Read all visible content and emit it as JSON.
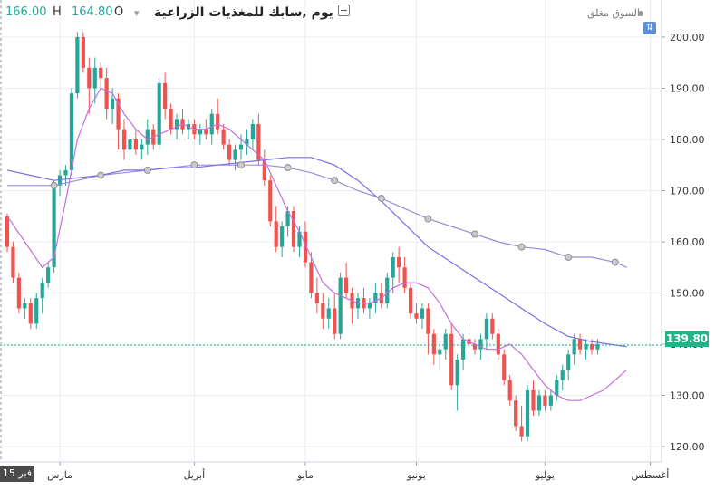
{
  "header": {
    "title": "يوم ,سابك للمغذيات الزراعية",
    "open_label": "O",
    "open_value": "164.80",
    "high_label": "H",
    "high_value": "166.00",
    "market_status": "السوق مغلق",
    "sort_glyph": "⇅",
    "minimize_icon": "minus-square-icon",
    "caret_icon": "caret-down-icon"
  },
  "last_price_label": "139.80",
  "crosshair_date_label": "15 فبر",
  "colors": {
    "up": "#26a69a",
    "down": "#ef5350",
    "ma_short": "#c86ce0",
    "ma_mid": "#7b6ee8",
    "ma_long": "#9a8cd9",
    "last_price_line": "#22b388",
    "grid": "#e9eef3"
  },
  "chart_data": {
    "type": "candlestick",
    "y_ticks": [
      "200.00",
      "190.00",
      "180.00",
      "170.00",
      "160.00",
      "150.00",
      "140.00",
      "130.00",
      "120.00"
    ],
    "ylim": [
      117,
      203
    ],
    "x_tick_labels": [
      "مارس",
      "أبريل",
      "مايو",
      "يونيو",
      "يوليو",
      "أغسطس"
    ],
    "x_tick_index": [
      9,
      32,
      51,
      70,
      92,
      110
    ],
    "last_price": 139.8,
    "candles": [
      [
        165,
        165.5,
        158,
        159
      ],
      [
        159,
        160,
        152,
        153
      ],
      [
        153,
        154,
        146,
        147
      ],
      [
        147,
        149,
        145,
        148
      ],
      [
        148,
        149,
        143,
        144
      ],
      [
        144,
        150,
        143,
        149
      ],
      [
        149,
        153,
        146,
        152
      ],
      [
        152,
        156,
        151,
        155
      ],
      [
        155,
        172,
        154,
        171
      ],
      [
        171,
        174,
        169,
        173
      ],
      [
        173,
        175,
        171,
        174
      ],
      [
        174,
        190,
        173,
        189
      ],
      [
        189,
        201,
        188,
        200
      ],
      [
        200,
        201,
        193,
        194
      ],
      [
        194,
        196,
        185,
        190
      ],
      [
        190,
        196,
        187,
        194
      ],
      [
        194,
        195,
        190,
        192
      ],
      [
        192,
        194,
        184,
        186
      ],
      [
        186,
        190,
        183,
        188
      ],
      [
        188,
        189,
        178,
        182
      ],
      [
        182,
        184,
        176,
        178
      ],
      [
        178,
        181,
        176,
        180
      ],
      [
        180,
        182,
        177,
        178
      ],
      [
        178,
        180,
        176,
        179
      ],
      [
        179,
        184,
        177,
        182
      ],
      [
        182,
        183,
        178,
        179
      ],
      [
        179,
        192,
        178,
        191
      ],
      [
        191,
        193,
        184,
        186
      ],
      [
        186,
        187,
        181,
        182
      ],
      [
        182,
        185,
        180,
        184
      ],
      [
        184,
        186,
        181,
        182
      ],
      [
        182,
        184,
        180,
        183
      ],
      [
        183,
        184,
        180,
        181
      ],
      [
        181,
        183,
        179,
        182
      ],
      [
        182,
        184,
        180,
        181
      ],
      [
        181,
        186,
        179,
        185
      ],
      [
        185,
        188,
        181,
        182
      ],
      [
        182,
        183,
        178,
        179
      ],
      [
        179,
        180,
        175,
        176
      ],
      [
        176,
        179,
        174,
        178
      ],
      [
        178,
        181,
        176,
        179
      ],
      [
        179,
        182,
        177,
        180
      ],
      [
        180,
        184,
        178,
        183
      ],
      [
        183,
        185,
        175,
        176
      ],
      [
        176,
        178,
        171,
        172
      ],
      [
        172,
        173,
        163,
        164
      ],
      [
        164,
        167,
        158,
        159
      ],
      [
        159,
        164,
        157,
        163
      ],
      [
        163,
        167,
        161,
        166
      ],
      [
        166,
        167,
        158,
        159
      ],
      [
        159,
        163,
        157,
        162
      ],
      [
        162,
        164,
        155,
        156
      ],
      [
        156,
        158,
        149,
        150
      ],
      [
        150,
        153,
        146,
        148
      ],
      [
        148,
        150,
        143,
        145
      ],
      [
        145,
        149,
        143,
        147
      ],
      [
        147,
        150,
        141,
        142
      ],
      [
        142,
        154,
        141,
        153
      ],
      [
        153,
        156,
        149,
        150
      ],
      [
        150,
        151,
        144,
        147
      ],
      [
        147,
        150,
        145,
        149
      ],
      [
        149,
        151,
        146,
        147
      ],
      [
        147,
        149,
        145,
        148
      ],
      [
        148,
        152,
        146,
        150
      ],
      [
        150,
        152,
        147,
        148
      ],
      [
        148,
        154,
        147,
        153
      ],
      [
        153,
        158,
        150,
        157
      ],
      [
        157,
        159,
        152,
        155
      ],
      [
        155,
        157,
        150,
        151
      ],
      [
        151,
        152,
        145,
        146
      ],
      [
        146,
        148,
        144,
        145
      ],
      [
        145,
        148,
        143,
        147
      ],
      [
        147,
        148,
        138,
        142
      ],
      [
        142,
        143,
        136,
        138
      ],
      [
        138,
        140,
        135,
        139
      ],
      [
        139,
        143,
        137,
        142
      ],
      [
        142,
        144,
        131,
        132
      ],
      [
        132,
        138,
        127,
        137
      ],
      [
        137,
        142,
        135,
        141
      ],
      [
        141,
        144,
        139,
        140
      ],
      [
        140,
        141,
        138,
        139
      ],
      [
        139,
        142,
        137,
        141
      ],
      [
        141,
        146,
        139,
        145
      ],
      [
        145,
        146,
        141,
        142
      ],
      [
        142,
        143,
        137,
        138
      ],
      [
        138,
        139,
        132,
        133
      ],
      [
        133,
        134,
        128,
        129
      ],
      [
        129,
        130,
        123,
        124
      ],
      [
        124,
        128,
        121,
        122
      ],
      [
        122,
        132,
        121,
        131
      ],
      [
        131,
        133,
        126,
        127
      ],
      [
        127,
        131,
        126,
        130
      ],
      [
        130,
        131,
        127,
        128
      ],
      [
        128,
        131,
        127,
        130
      ],
      [
        130,
        134,
        129,
        133
      ],
      [
        133,
        136,
        131,
        135
      ],
      [
        135,
        139,
        133,
        138
      ],
      [
        138,
        142,
        136,
        141
      ],
      [
        141,
        142,
        138,
        139
      ],
      [
        139,
        141,
        137,
        140
      ],
      [
        140,
        141,
        138,
        139
      ],
      [
        139,
        141,
        138,
        140
      ]
    ],
    "ma_short": [
      [
        0,
        165
      ],
      [
        3,
        160
      ],
      [
        6,
        155
      ],
      [
        8,
        157
      ],
      [
        10,
        168
      ],
      [
        12,
        180
      ],
      [
        14,
        186
      ],
      [
        16,
        190
      ],
      [
        18,
        189
      ],
      [
        20,
        185
      ],
      [
        22,
        182
      ],
      [
        24,
        180
      ],
      [
        26,
        181
      ],
      [
        28,
        182
      ],
      [
        30,
        183
      ],
      [
        32,
        182
      ],
      [
        34,
        182
      ],
      [
        36,
        183
      ],
      [
        38,
        182
      ],
      [
        40,
        180
      ],
      [
        42,
        178
      ],
      [
        44,
        176
      ],
      [
        46,
        171
      ],
      [
        48,
        166
      ],
      [
        50,
        162
      ],
      [
        52,
        157
      ],
      [
        54,
        152
      ],
      [
        56,
        150
      ],
      [
        58,
        149
      ],
      [
        60,
        148
      ],
      [
        62,
        148
      ],
      [
        64,
        149
      ],
      [
        66,
        151
      ],
      [
        68,
        152
      ],
      [
        70,
        152
      ],
      [
        72,
        151
      ],
      [
        74,
        148
      ],
      [
        76,
        144
      ],
      [
        78,
        141
      ],
      [
        80,
        140
      ],
      [
        82,
        139
      ],
      [
        84,
        139
      ],
      [
        86,
        140
      ],
      [
        88,
        138
      ],
      [
        90,
        135
      ],
      [
        92,
        132
      ],
      [
        94,
        130
      ],
      [
        96,
        129
      ],
      [
        98,
        129
      ],
      [
        100,
        130
      ],
      [
        102,
        131
      ],
      [
        104,
        133
      ],
      [
        106,
        135
      ]
    ],
    "ma_mid": [
      [
        0,
        174
      ],
      [
        4,
        173
      ],
      [
        8,
        172
      ],
      [
        12,
        172.5
      ],
      [
        16,
        173
      ],
      [
        20,
        174
      ],
      [
        24,
        174
      ],
      [
        28,
        174.5
      ],
      [
        32,
        174.5
      ],
      [
        36,
        175
      ],
      [
        40,
        175.5
      ],
      [
        44,
        176
      ],
      [
        48,
        176.5
      ],
      [
        52,
        176.5
      ],
      [
        56,
        175
      ],
      [
        60,
        172
      ],
      [
        64,
        168
      ],
      [
        68,
        163.5
      ],
      [
        72,
        159
      ],
      [
        76,
        156
      ],
      [
        80,
        153
      ],
      [
        84,
        150
      ],
      [
        88,
        147
      ],
      [
        92,
        144
      ],
      [
        96,
        141.5
      ],
      [
        100,
        140.5
      ],
      [
        103,
        140
      ],
      [
        106,
        139.5
      ]
    ],
    "ma_long": [
      [
        0,
        171
      ],
      [
        4,
        171
      ],
      [
        8,
        171
      ],
      [
        12,
        172
      ],
      [
        16,
        173
      ],
      [
        20,
        173.5
      ],
      [
        24,
        174
      ],
      [
        28,
        174.5
      ],
      [
        32,
        175
      ],
      [
        36,
        175
      ],
      [
        40,
        175
      ],
      [
        44,
        175
      ],
      [
        48,
        174.5
      ],
      [
        52,
        173.5
      ],
      [
        56,
        172
      ],
      [
        60,
        170
      ],
      [
        64,
        168.5
      ],
      [
        68,
        166.5
      ],
      [
        72,
        164.5
      ],
      [
        76,
        163
      ],
      [
        80,
        161.5
      ],
      [
        84,
        160
      ],
      [
        88,
        159
      ],
      [
        92,
        158.5
      ],
      [
        96,
        157
      ],
      [
        100,
        157
      ],
      [
        104,
        156
      ],
      [
        106,
        155
      ]
    ],
    "ma_long_markers": [
      8,
      16,
      24,
      32,
      40,
      48,
      56,
      64,
      72,
      80,
      88,
      96,
      104
    ]
  }
}
